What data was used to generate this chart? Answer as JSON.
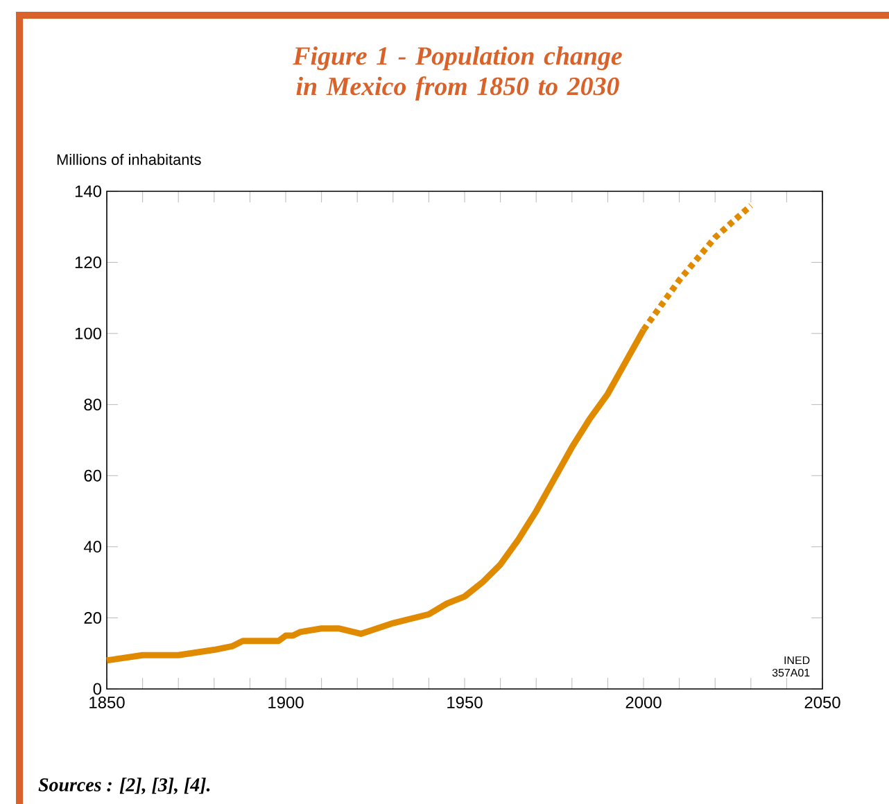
{
  "chart_data": {
    "type": "line",
    "title": "Figure 1 - Population change in Mexico from 1850 to 2030",
    "ylabel": "Millions of inhabitants",
    "series": [
      {
        "color": "#e08a00",
        "line_style": "solid",
        "x": [
          1850,
          1860,
          1870,
          1880,
          1885,
          1888,
          1895,
          1898,
          1900,
          1902,
          1904,
          1910,
          1915,
          1921,
          1930,
          1940,
          1945,
          1950,
          1955,
          1960,
          1965,
          1970,
          1975,
          1980,
          1985,
          1990,
          1995,
          2000
        ],
        "values": [
          8,
          9.5,
          9.5,
          11,
          12,
          13.5,
          13.5,
          13.5,
          15,
          15,
          16,
          17,
          17,
          15.5,
          18.5,
          21,
          24,
          26,
          30,
          35,
          42,
          50,
          59,
          68,
          76,
          83,
          92,
          101
        ]
      },
      {
        "color": "#e08a00",
        "line_style": "dotted",
        "x": [
          2000,
          2010,
          2020,
          2030
        ],
        "values": [
          101,
          115,
          127,
          136
        ]
      }
    ],
    "xlim": [
      1850,
      2050
    ],
    "ylim": [
      0,
      140
    ],
    "xticks": [
      1850,
      {
        "value": 1860,
        "label": null
      },
      {
        "value": 1870,
        "label": null
      },
      {
        "value": 1880,
        "label": null
      },
      {
        "value": 1890,
        "label": null
      },
      1900,
      {
        "value": 1910,
        "label": null
      },
      {
        "value": 1920,
        "label": null
      },
      {
        "value": 1930,
        "label": null
      },
      {
        "value": 1940,
        "label": null
      },
      1950,
      {
        "value": 1960,
        "label": null
      },
      {
        "value": 1970,
        "label": null
      },
      {
        "value": 1980,
        "label": null
      },
      {
        "value": 1990,
        "label": null
      },
      2000,
      {
        "value": 2010,
        "label": null
      },
      {
        "value": 2020,
        "label": null
      },
      {
        "value": 2030,
        "label": null
      },
      {
        "value": 2040,
        "label": null
      },
      2050
    ],
    "yticks": [
      0,
      20,
      40,
      60,
      80,
      100,
      120,
      140
    ],
    "grid": false,
    "annotations": [
      "INED",
      "357A01",
      "Sources : [2], [3], [4]."
    ]
  }
}
